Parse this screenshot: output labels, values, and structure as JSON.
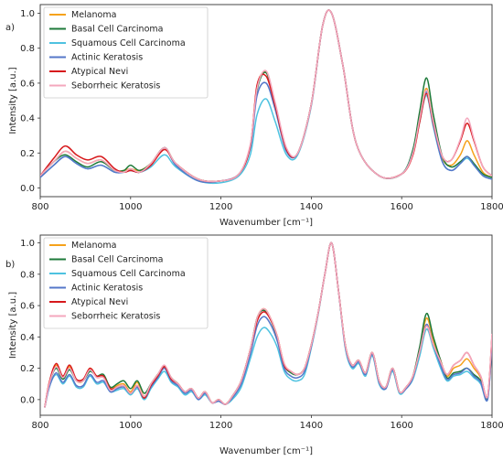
{
  "colors": {
    "Melanoma": "#f5a21b",
    "Basal Cell Carcinoma": "#1e7a3a",
    "Squamous Cell Carcinoma": "#4ec2e0",
    "Actinic Keratosis": "#5577c9",
    "Atypical Nevi": "#d7191c",
    "Seborrheic Keratosis": "#f4a7bd"
  },
  "chart_data": [
    {
      "type": "line",
      "panel_label": "a)",
      "xlabel": "Wavenumber [cm⁻¹]",
      "ylabel": "Intensity [a.u.]",
      "xlim": [
        800,
        1800
      ],
      "ylim": [
        -0.05,
        1.05
      ],
      "xticks": [
        "800",
        "1000",
        "1200",
        "1400",
        "1600",
        "1800"
      ],
      "yticks": [
        "0.0",
        "0.2",
        "0.4",
        "0.6",
        "0.8",
        "1.0"
      ],
      "legend_position": "top-left",
      "grid": false,
      "x": [
        800,
        830,
        855,
        880,
        905,
        935,
        965,
        985,
        1000,
        1020,
        1045,
        1075,
        1100,
        1150,
        1200,
        1240,
        1265,
        1280,
        1300,
        1320,
        1345,
        1370,
        1400,
        1425,
        1445,
        1470,
        1500,
        1550,
        1600,
        1625,
        1640,
        1655,
        1670,
        1690,
        1710,
        1730,
        1745,
        1760,
        1780,
        1800
      ],
      "series": [
        {
          "name": "Melanoma",
          "values": [
            0.07,
            0.15,
            0.21,
            0.17,
            0.14,
            0.16,
            0.1,
            0.1,
            0.11,
            0.1,
            0.14,
            0.23,
            0.14,
            0.05,
            0.04,
            0.08,
            0.24,
            0.58,
            0.66,
            0.48,
            0.22,
            0.2,
            0.48,
            0.93,
            1.0,
            0.7,
            0.25,
            0.07,
            0.08,
            0.2,
            0.4,
            0.57,
            0.38,
            0.17,
            0.13,
            0.19,
            0.27,
            0.19,
            0.09,
            0.06
          ]
        },
        {
          "name": "Basal Cell Carcinoma",
          "values": [
            0.07,
            0.15,
            0.19,
            0.15,
            0.12,
            0.15,
            0.1,
            0.1,
            0.13,
            0.1,
            0.14,
            0.23,
            0.14,
            0.05,
            0.04,
            0.08,
            0.24,
            0.56,
            0.66,
            0.48,
            0.22,
            0.2,
            0.48,
            0.93,
            1.0,
            0.7,
            0.25,
            0.07,
            0.08,
            0.22,
            0.44,
            0.63,
            0.42,
            0.18,
            0.12,
            0.15,
            0.18,
            0.14,
            0.08,
            0.06
          ]
        },
        {
          "name": "Squamous Cell Carcinoma",
          "values": [
            0.06,
            0.13,
            0.18,
            0.14,
            0.11,
            0.13,
            0.09,
            0.09,
            0.1,
            0.09,
            0.12,
            0.19,
            0.12,
            0.04,
            0.03,
            0.07,
            0.19,
            0.42,
            0.51,
            0.38,
            0.19,
            0.19,
            0.47,
            0.93,
            1.0,
            0.7,
            0.25,
            0.07,
            0.08,
            0.2,
            0.38,
            0.53,
            0.35,
            0.15,
            0.1,
            0.14,
            0.17,
            0.13,
            0.07,
            0.05
          ]
        },
        {
          "name": "Actinic Keratosis",
          "values": [
            0.06,
            0.13,
            0.18,
            0.14,
            0.11,
            0.13,
            0.09,
            0.09,
            0.1,
            0.09,
            0.13,
            0.23,
            0.13,
            0.04,
            0.04,
            0.08,
            0.23,
            0.53,
            0.6,
            0.45,
            0.21,
            0.2,
            0.48,
            0.93,
            1.0,
            0.7,
            0.25,
            0.07,
            0.08,
            0.2,
            0.39,
            0.55,
            0.36,
            0.15,
            0.1,
            0.14,
            0.18,
            0.13,
            0.07,
            0.05
          ]
        },
        {
          "name": "Atypical Nevi",
          "values": [
            0.07,
            0.17,
            0.24,
            0.19,
            0.16,
            0.18,
            0.11,
            0.09,
            0.1,
            0.09,
            0.13,
            0.22,
            0.14,
            0.05,
            0.04,
            0.08,
            0.24,
            0.59,
            0.64,
            0.47,
            0.22,
            0.2,
            0.48,
            0.93,
            1.0,
            0.7,
            0.25,
            0.07,
            0.08,
            0.19,
            0.38,
            0.54,
            0.37,
            0.18,
            0.16,
            0.27,
            0.37,
            0.27,
            0.12,
            0.07
          ]
        },
        {
          "name": "Seborrheic Keratosis",
          "values": [
            0.07,
            0.15,
            0.21,
            0.17,
            0.14,
            0.16,
            0.1,
            0.09,
            0.11,
            0.09,
            0.14,
            0.23,
            0.14,
            0.05,
            0.04,
            0.08,
            0.25,
            0.57,
            0.67,
            0.49,
            0.23,
            0.2,
            0.48,
            0.93,
            1.0,
            0.7,
            0.25,
            0.07,
            0.08,
            0.2,
            0.4,
            0.56,
            0.38,
            0.18,
            0.16,
            0.28,
            0.4,
            0.28,
            0.12,
            0.07
          ]
        }
      ]
    },
    {
      "type": "line",
      "panel_label": "b)",
      "xlabel": "Wavenumber [cm⁻¹]",
      "ylabel": "Intensity [a.u.]",
      "xlim": [
        800,
        1800
      ],
      "ylim": [
        -0.1,
        1.05
      ],
      "xticks": [
        "800",
        "1000",
        "1200",
        "1400",
        "1600",
        "1800"
      ],
      "yticks": [
        "0.0",
        "0.2",
        "0.4",
        "0.6",
        "0.8",
        "1.0"
      ],
      "legend_position": "top-left",
      "grid": false,
      "x": [
        810,
        820,
        835,
        850,
        865,
        880,
        895,
        910,
        925,
        940,
        955,
        970,
        985,
        1000,
        1015,
        1030,
        1045,
        1060,
        1075,
        1090,
        1105,
        1120,
        1135,
        1150,
        1165,
        1180,
        1195,
        1210,
        1225,
        1245,
        1265,
        1280,
        1295,
        1310,
        1325,
        1340,
        1355,
        1370,
        1385,
        1400,
        1415,
        1430,
        1445,
        1460,
        1475,
        1490,
        1505,
        1520,
        1535,
        1550,
        1565,
        1580,
        1595,
        1610,
        1625,
        1640,
        1655,
        1670,
        1685,
        1700,
        1715,
        1730,
        1745,
        1760,
        1775,
        1790,
        1800
      ],
      "series": [
        {
          "name": "Melanoma",
          "values": [
            -0.05,
            0.1,
            0.22,
            0.15,
            0.21,
            0.12,
            0.12,
            0.2,
            0.15,
            0.15,
            0.07,
            0.09,
            0.1,
            0.05,
            0.11,
            0.02,
            0.1,
            0.16,
            0.21,
            0.14,
            0.1,
            0.05,
            0.07,
            0.01,
            0.05,
            -0.02,
            0.0,
            -0.03,
            0.02,
            0.12,
            0.32,
            0.52,
            0.58,
            0.52,
            0.4,
            0.23,
            0.18,
            0.16,
            0.2,
            0.35,
            0.55,
            0.8,
            1.0,
            0.7,
            0.35,
            0.22,
            0.25,
            0.17,
            0.3,
            0.12,
            0.08,
            0.2,
            0.05,
            0.08,
            0.15,
            0.32,
            0.52,
            0.38,
            0.26,
            0.15,
            0.2,
            0.22,
            0.26,
            0.2,
            0.14,
            0.01,
            0.4
          ]
        },
        {
          "name": "Basal Cell Carcinoma",
          "values": [
            -0.05,
            0.1,
            0.2,
            0.13,
            0.19,
            0.12,
            0.12,
            0.18,
            0.15,
            0.16,
            0.08,
            0.1,
            0.12,
            0.07,
            0.12,
            0.04,
            0.1,
            0.16,
            0.21,
            0.14,
            0.1,
            0.05,
            0.07,
            0.01,
            0.05,
            -0.02,
            0.0,
            -0.03,
            0.02,
            0.12,
            0.32,
            0.52,
            0.57,
            0.51,
            0.39,
            0.22,
            0.17,
            0.16,
            0.2,
            0.35,
            0.55,
            0.8,
            1.0,
            0.7,
            0.35,
            0.22,
            0.25,
            0.17,
            0.3,
            0.12,
            0.08,
            0.2,
            0.05,
            0.08,
            0.15,
            0.34,
            0.55,
            0.4,
            0.26,
            0.14,
            0.17,
            0.18,
            0.2,
            0.16,
            0.12,
            0.01,
            0.38
          ]
        },
        {
          "name": "Squamous Cell Carcinoma",
          "values": [
            -0.05,
            0.08,
            0.16,
            0.1,
            0.15,
            0.08,
            0.08,
            0.15,
            0.1,
            0.11,
            0.05,
            0.06,
            0.07,
            0.03,
            0.07,
            0.0,
            0.07,
            0.13,
            0.18,
            0.11,
            0.08,
            0.03,
            0.05,
            0.0,
            0.03,
            -0.02,
            -0.01,
            -0.03,
            0.0,
            0.08,
            0.26,
            0.4,
            0.46,
            0.42,
            0.33,
            0.18,
            0.13,
            0.12,
            0.16,
            0.33,
            0.54,
            0.8,
            1.0,
            0.7,
            0.33,
            0.2,
            0.23,
            0.15,
            0.28,
            0.1,
            0.07,
            0.18,
            0.04,
            0.07,
            0.13,
            0.28,
            0.45,
            0.33,
            0.21,
            0.12,
            0.15,
            0.16,
            0.18,
            0.14,
            0.1,
            0.0,
            0.35
          ]
        },
        {
          "name": "Actinic Keratosis",
          "values": [
            -0.05,
            0.08,
            0.17,
            0.11,
            0.16,
            0.09,
            0.09,
            0.16,
            0.11,
            0.12,
            0.05,
            0.07,
            0.08,
            0.04,
            0.08,
            0.01,
            0.08,
            0.14,
            0.2,
            0.12,
            0.09,
            0.04,
            0.06,
            0.0,
            0.04,
            -0.02,
            -0.01,
            -0.03,
            0.01,
            0.1,
            0.29,
            0.47,
            0.53,
            0.48,
            0.37,
            0.2,
            0.15,
            0.14,
            0.18,
            0.34,
            0.55,
            0.8,
            1.0,
            0.7,
            0.34,
            0.21,
            0.24,
            0.16,
            0.29,
            0.11,
            0.07,
            0.19,
            0.05,
            0.07,
            0.14,
            0.31,
            0.48,
            0.35,
            0.23,
            0.13,
            0.16,
            0.17,
            0.2,
            0.15,
            0.11,
            0.0,
            0.36
          ]
        },
        {
          "name": "Atypical Nevi",
          "values": [
            -0.05,
            0.11,
            0.23,
            0.15,
            0.22,
            0.13,
            0.13,
            0.2,
            0.15,
            0.15,
            0.07,
            0.08,
            0.09,
            0.04,
            0.09,
            0.01,
            0.09,
            0.15,
            0.21,
            0.13,
            0.1,
            0.05,
            0.07,
            0.01,
            0.05,
            -0.02,
            0.0,
            -0.03,
            0.02,
            0.12,
            0.32,
            0.5,
            0.56,
            0.51,
            0.4,
            0.22,
            0.18,
            0.16,
            0.2,
            0.35,
            0.55,
            0.8,
            1.0,
            0.7,
            0.35,
            0.22,
            0.25,
            0.17,
            0.3,
            0.12,
            0.08,
            0.2,
            0.05,
            0.08,
            0.15,
            0.31,
            0.47,
            0.35,
            0.25,
            0.16,
            0.22,
            0.25,
            0.3,
            0.22,
            0.15,
            0.02,
            0.41
          ]
        },
        {
          "name": "Seborrheic Keratosis",
          "values": [
            -0.05,
            0.1,
            0.21,
            0.14,
            0.2,
            0.12,
            0.12,
            0.19,
            0.14,
            0.14,
            0.06,
            0.08,
            0.09,
            0.04,
            0.09,
            0.02,
            0.1,
            0.16,
            0.22,
            0.14,
            0.1,
            0.05,
            0.07,
            0.01,
            0.05,
            -0.02,
            0.0,
            -0.03,
            0.02,
            0.12,
            0.32,
            0.52,
            0.58,
            0.52,
            0.4,
            0.23,
            0.18,
            0.16,
            0.2,
            0.35,
            0.55,
            0.8,
            1.0,
            0.7,
            0.35,
            0.22,
            0.25,
            0.17,
            0.3,
            0.12,
            0.08,
            0.2,
            0.05,
            0.08,
            0.15,
            0.31,
            0.47,
            0.35,
            0.25,
            0.16,
            0.22,
            0.25,
            0.3,
            0.22,
            0.15,
            0.02,
            0.42
          ]
        }
      ]
    }
  ]
}
